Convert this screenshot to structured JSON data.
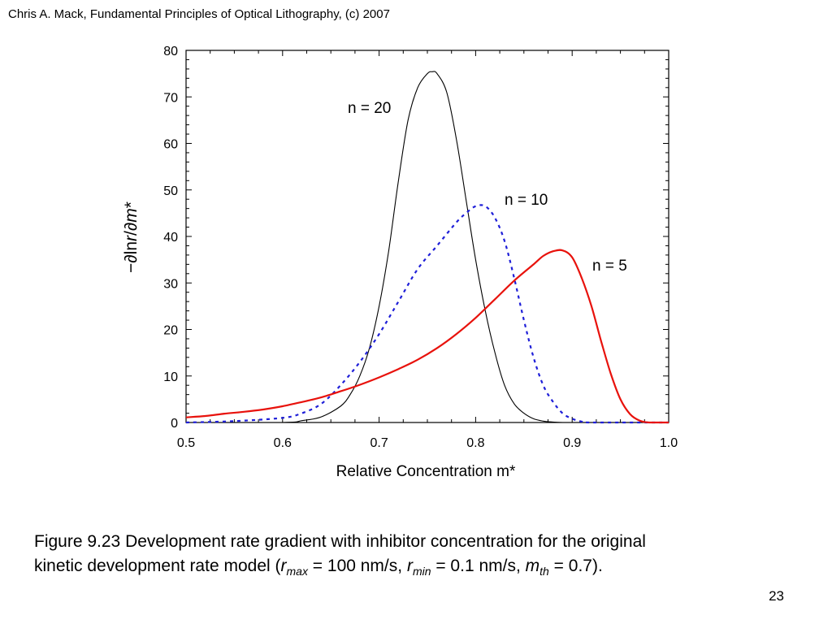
{
  "header": {
    "text": "Chris A. Mack, Fundamental Principles of Optical Lithography, (c) 2007"
  },
  "chart_data": {
    "type": "line",
    "title": "",
    "xlabel": "Relative Concentration m*",
    "ylabel": "−∂ln r/∂m*",
    "ylabel_parts": {
      "minus": "−",
      "partial1": "∂",
      "ln": "ln",
      "r": "r",
      "slash": "/",
      "partial2": "∂",
      "m": "m",
      "star": "*"
    },
    "xlim": [
      0.5,
      1.0
    ],
    "ylim": [
      0,
      80
    ],
    "x_ticks": [
      "0.5",
      "0.6",
      "0.7",
      "0.8",
      "0.9",
      "1.0"
    ],
    "y_ticks": [
      "0",
      "10",
      "20",
      "30",
      "40",
      "50",
      "60",
      "70",
      "80"
    ],
    "grid": false,
    "legend": "none",
    "series": [
      {
        "name": "n = 20",
        "color": "#000000",
        "style": "solid",
        "x": [
          0.5,
          0.6,
          0.62,
          0.64,
          0.66,
          0.67,
          0.68,
          0.69,
          0.7,
          0.71,
          0.72,
          0.73,
          0.74,
          0.75,
          0.755,
          0.76,
          0.77,
          0.78,
          0.79,
          0.8,
          0.81,
          0.82,
          0.83,
          0.84,
          0.85,
          0.86,
          0.87,
          0.88,
          0.89,
          0.9,
          1.0
        ],
        "y": [
          0,
          0,
          0.4,
          1.2,
          3.5,
          6,
          10,
          16,
          25,
          37,
          52,
          65,
          72,
          75,
          75.4,
          75,
          71,
          61,
          48,
          35,
          24,
          15,
          8,
          4,
          2,
          0.8,
          0.3,
          0.1,
          0,
          0,
          0
        ]
      },
      {
        "name": "n = 10",
        "color": "#1f1fd8",
        "style": "dashed",
        "x": [
          0.5,
          0.55,
          0.6,
          0.62,
          0.64,
          0.66,
          0.68,
          0.7,
          0.72,
          0.74,
          0.76,
          0.78,
          0.79,
          0.8,
          0.81,
          0.82,
          0.83,
          0.84,
          0.85,
          0.86,
          0.87,
          0.88,
          0.89,
          0.9,
          0.91,
          0.92,
          1.0
        ],
        "y": [
          0,
          0.3,
          1,
          2,
          4,
          8,
          13,
          19,
          26,
          33,
          38,
          43,
          45,
          46.5,
          46.5,
          44,
          39,
          31,
          22,
          14,
          8,
          4.5,
          2,
          0.8,
          0.2,
          0,
          0
        ]
      },
      {
        "name": "n = 5",
        "color": "#e8120c",
        "style": "solid",
        "x": [
          0.5,
          0.52,
          0.54,
          0.56,
          0.58,
          0.6,
          0.62,
          0.64,
          0.66,
          0.68,
          0.7,
          0.72,
          0.74,
          0.76,
          0.78,
          0.8,
          0.82,
          0.84,
          0.86,
          0.87,
          0.88,
          0.89,
          0.9,
          0.91,
          0.92,
          0.93,
          0.94,
          0.95,
          0.96,
          0.97,
          0.98,
          0.99,
          1.0
        ],
        "y": [
          1.1,
          1.4,
          1.9,
          2.3,
          2.8,
          3.5,
          4.4,
          5.4,
          6.7,
          8.1,
          9.7,
          11.5,
          13.5,
          16,
          19,
          22.5,
          26.5,
          30.5,
          34,
          35.8,
          36.8,
          37,
          35.5,
          31,
          25,
          17.5,
          10.5,
          5,
          1.8,
          0.4,
          0,
          0,
          0
        ]
      }
    ]
  },
  "caption": {
    "line1": "Figure 9.23  Development rate gradient with inhibitor concentration for the original",
    "line2_start": "kinetic development rate model (",
    "r1": "r",
    "r1_sub": "max",
    "eq1": " = 100 nm/s, ",
    "r2": "r",
    "r2_sub": "min",
    "eq2": " = 0.1 nm/s, ",
    "m": "m",
    "m_sub": "th",
    "eq3": " = 0.7)."
  },
  "page_number": "23"
}
